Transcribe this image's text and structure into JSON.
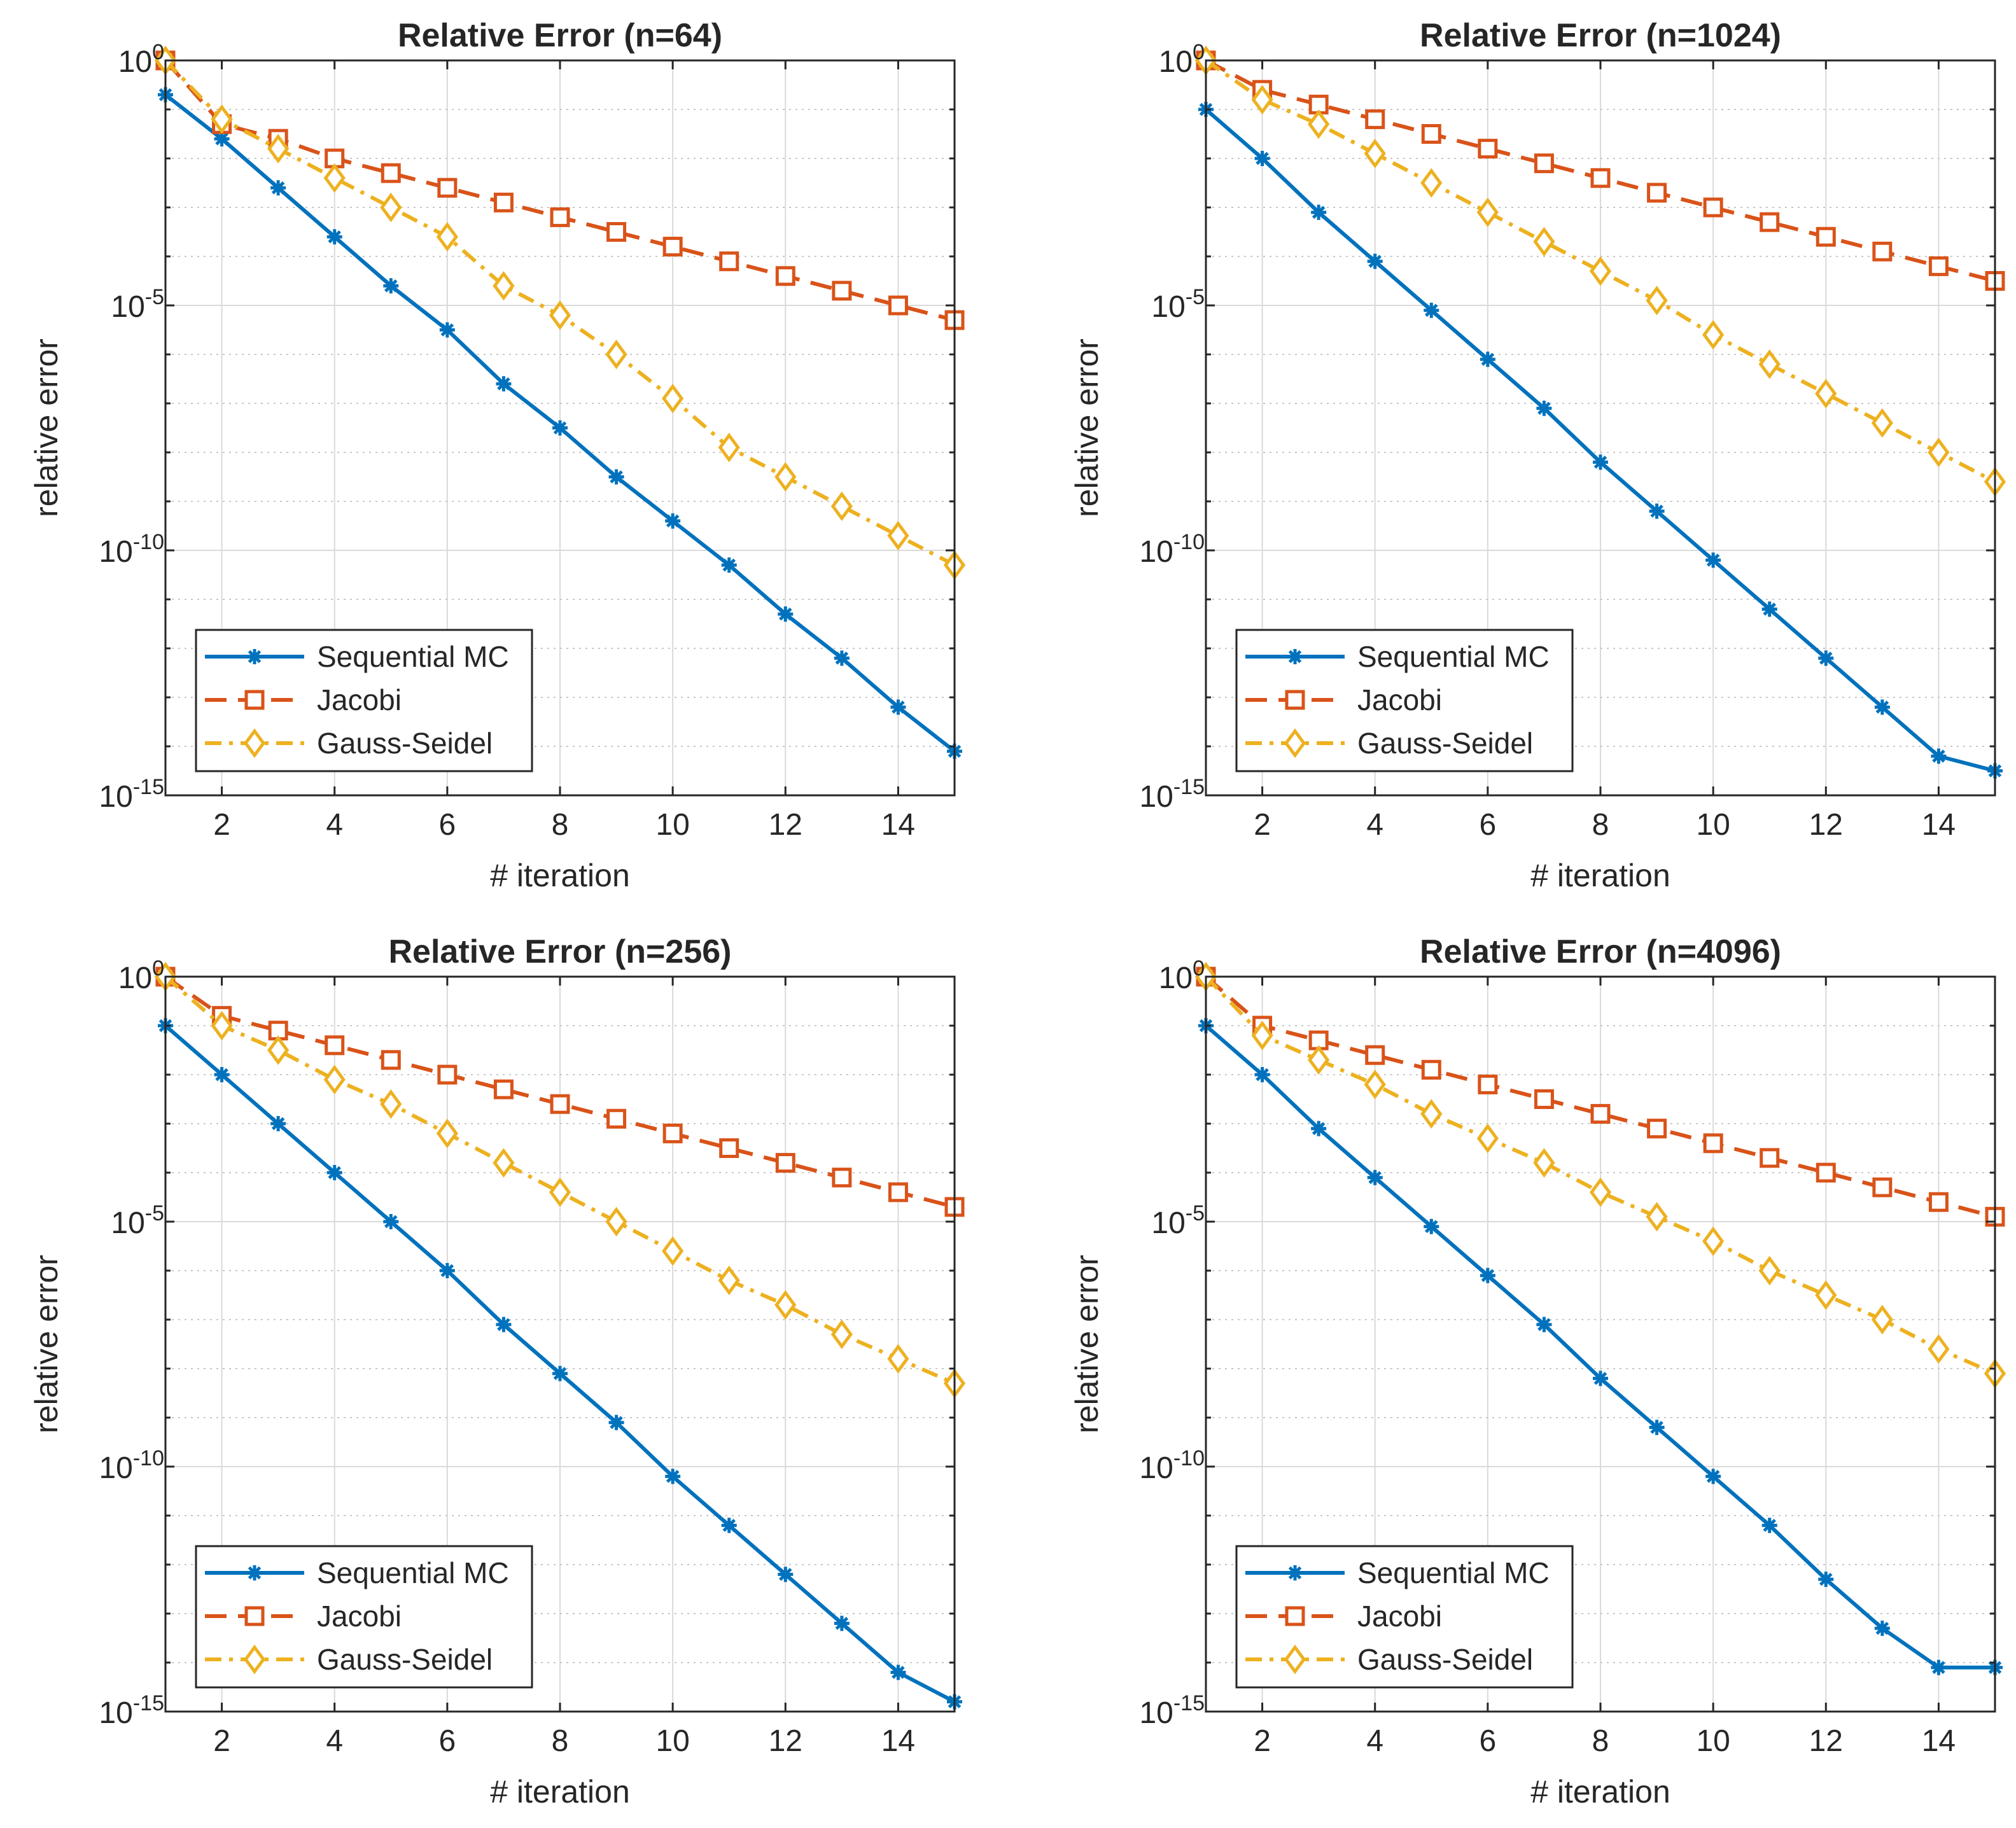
{
  "figure": {
    "colors": {
      "sequential": "#0072BD",
      "jacobi": "#D95319",
      "gauss_seidel": "#EDB120",
      "axis": "#262626",
      "grid_major": "#DADADA",
      "grid_minor": "#C8C8C8"
    }
  },
  "chart_data": [
    {
      "type": "line",
      "yscale": "log",
      "title": "Relative Error (n=64)",
      "xlabel": "# iteration",
      "ylabel": "relative error",
      "xlim": [
        1,
        15
      ],
      "ylim_exp": [
        -15,
        0
      ],
      "xticks": [
        "2",
        "4",
        "6",
        "8",
        "10",
        "12",
        "14"
      ],
      "yticks": [
        {
          "base": "10",
          "exp": "0"
        },
        {
          "base": "10",
          "exp": "-5"
        },
        {
          "base": "10",
          "exp": "-10"
        },
        {
          "base": "10",
          "exp": "-15"
        }
      ],
      "grid": true,
      "legend_location": "bottom-left",
      "x": [
        1,
        2,
        3,
        4,
        5,
        6,
        7,
        8,
        9,
        10,
        11,
        12,
        13,
        14,
        15
      ],
      "series": [
        {
          "name": "Sequential MC",
          "key": "sequential",
          "marker": "asterisk",
          "linestyle": "solid",
          "log10_values": [
            -0.7,
            -1.6,
            -2.6,
            -3.6,
            -4.6,
            -5.5,
            -6.6,
            -7.5,
            -8.5,
            -9.4,
            -10.3,
            -11.3,
            -12.2,
            -13.2,
            -14.1
          ]
        },
        {
          "name": "Jacobi",
          "key": "jacobi",
          "marker": "square",
          "linestyle": "dashed",
          "log10_values": [
            0.0,
            -1.3,
            -1.6,
            -2.0,
            -2.3,
            -2.6,
            -2.9,
            -3.2,
            -3.5,
            -3.8,
            -4.1,
            -4.4,
            -4.7,
            -5.0,
            -5.3
          ]
        },
        {
          "name": "Gauss-Seidel",
          "key": "gauss_seidel",
          "marker": "diamond",
          "linestyle": "dashdot",
          "log10_values": [
            0.0,
            -1.2,
            -1.8,
            -2.4,
            -3.0,
            -3.6,
            -4.6,
            -5.2,
            -6.0,
            -6.9,
            -7.9,
            -8.5,
            -9.1,
            -9.7,
            -10.3
          ]
        }
      ]
    },
    {
      "type": "line",
      "yscale": "log",
      "title": "Relative Error (n=1024)",
      "xlabel": "# iteration",
      "ylabel": "relative error",
      "xlim": [
        1,
        15
      ],
      "ylim_exp": [
        -15,
        0
      ],
      "xticks": [
        "2",
        "4",
        "6",
        "8",
        "10",
        "12",
        "14"
      ],
      "yticks": [
        {
          "base": "10",
          "exp": "0"
        },
        {
          "base": "10",
          "exp": "-5"
        },
        {
          "base": "10",
          "exp": "-10"
        },
        {
          "base": "10",
          "exp": "-15"
        }
      ],
      "grid": true,
      "legend_location": "bottom-left",
      "x": [
        1,
        2,
        3,
        4,
        5,
        6,
        7,
        8,
        9,
        10,
        11,
        12,
        13,
        14,
        15
      ],
      "series": [
        {
          "name": "Sequential MC",
          "key": "sequential",
          "marker": "asterisk",
          "linestyle": "solid",
          "log10_values": [
            -1.0,
            -2.0,
            -3.1,
            -4.1,
            -5.1,
            -6.1,
            -7.1,
            -8.2,
            -9.2,
            -10.2,
            -11.2,
            -12.2,
            -13.2,
            -14.2,
            -14.5
          ]
        },
        {
          "name": "Jacobi",
          "key": "jacobi",
          "marker": "square",
          "linestyle": "dashed",
          "log10_values": [
            0.0,
            -0.6,
            -0.9,
            -1.2,
            -1.5,
            -1.8,
            -2.1,
            -2.4,
            -2.7,
            -3.0,
            -3.3,
            -3.6,
            -3.9,
            -4.2,
            -4.5
          ]
        },
        {
          "name": "Gauss-Seidel",
          "key": "gauss_seidel",
          "marker": "diamond",
          "linestyle": "dashdot",
          "log10_values": [
            0.0,
            -0.8,
            -1.3,
            -1.9,
            -2.5,
            -3.1,
            -3.7,
            -4.3,
            -4.9,
            -5.6,
            -6.2,
            -6.8,
            -7.4,
            -8.0,
            -8.6
          ]
        }
      ]
    },
    {
      "type": "line",
      "yscale": "log",
      "title": "Relative Error (n=256)",
      "xlabel": "# iteration",
      "ylabel": "relative error",
      "xlim": [
        1,
        15
      ],
      "ylim_exp": [
        -15,
        0
      ],
      "xticks": [
        "2",
        "4",
        "6",
        "8",
        "10",
        "12",
        "14"
      ],
      "yticks": [
        {
          "base": "10",
          "exp": "0"
        },
        {
          "base": "10",
          "exp": "-5"
        },
        {
          "base": "10",
          "exp": "-10"
        },
        {
          "base": "10",
          "exp": "-15"
        }
      ],
      "grid": true,
      "legend_location": "bottom-left",
      "x": [
        1,
        2,
        3,
        4,
        5,
        6,
        7,
        8,
        9,
        10,
        11,
        12,
        13,
        14,
        15
      ],
      "series": [
        {
          "name": "Sequential MC",
          "key": "sequential",
          "marker": "asterisk",
          "linestyle": "solid",
          "log10_values": [
            -1.0,
            -2.0,
            -3.0,
            -4.0,
            -5.0,
            -6.0,
            -7.1,
            -8.1,
            -9.1,
            -10.2,
            -11.2,
            -12.2,
            -13.2,
            -14.2,
            -14.8
          ]
        },
        {
          "name": "Jacobi",
          "key": "jacobi",
          "marker": "square",
          "linestyle": "dashed",
          "log10_values": [
            0.0,
            -0.8,
            -1.1,
            -1.4,
            -1.7,
            -2.0,
            -2.3,
            -2.6,
            -2.9,
            -3.2,
            -3.5,
            -3.8,
            -4.1,
            -4.4,
            -4.7
          ]
        },
        {
          "name": "Gauss-Seidel",
          "key": "gauss_seidel",
          "marker": "diamond",
          "linestyle": "dashdot",
          "log10_values": [
            0.0,
            -1.0,
            -1.5,
            -2.1,
            -2.6,
            -3.2,
            -3.8,
            -4.4,
            -5.0,
            -5.6,
            -6.2,
            -6.7,
            -7.3,
            -7.8,
            -8.3
          ]
        }
      ]
    },
    {
      "type": "line",
      "yscale": "log",
      "title": "Relative Error (n=4096)",
      "xlabel": "# iteration",
      "ylabel": "relative error",
      "xlim": [
        1,
        15
      ],
      "ylim_exp": [
        -15,
        0
      ],
      "xticks": [
        "2",
        "4",
        "6",
        "8",
        "10",
        "12",
        "14"
      ],
      "yticks": [
        {
          "base": "10",
          "exp": "0"
        },
        {
          "base": "10",
          "exp": "-5"
        },
        {
          "base": "10",
          "exp": "-10"
        },
        {
          "base": "10",
          "exp": "-15"
        }
      ],
      "grid": true,
      "legend_location": "bottom-left",
      "x": [
        1,
        2,
        3,
        4,
        5,
        6,
        7,
        8,
        9,
        10,
        11,
        12,
        13,
        14,
        15
      ],
      "series": [
        {
          "name": "Sequential MC",
          "key": "sequential",
          "marker": "asterisk",
          "linestyle": "solid",
          "log10_values": [
            -1.0,
            -2.0,
            -3.1,
            -4.1,
            -5.1,
            -6.1,
            -7.1,
            -8.2,
            -9.2,
            -10.2,
            -11.2,
            -12.3,
            -13.3,
            -14.1,
            -14.1
          ]
        },
        {
          "name": "Jacobi",
          "key": "jacobi",
          "marker": "square",
          "linestyle": "dashed",
          "log10_values": [
            0.0,
            -1.0,
            -1.3,
            -1.6,
            -1.9,
            -2.2,
            -2.5,
            -2.8,
            -3.1,
            -3.4,
            -3.7,
            -4.0,
            -4.3,
            -4.6,
            -4.9
          ]
        },
        {
          "name": "Gauss-Seidel",
          "key": "gauss_seidel",
          "marker": "diamond",
          "linestyle": "dashdot",
          "log10_values": [
            0.0,
            -1.2,
            -1.7,
            -2.2,
            -2.8,
            -3.3,
            -3.8,
            -4.4,
            -4.9,
            -5.4,
            -6.0,
            -6.5,
            -7.0,
            -7.6,
            -8.1
          ]
        }
      ]
    }
  ]
}
